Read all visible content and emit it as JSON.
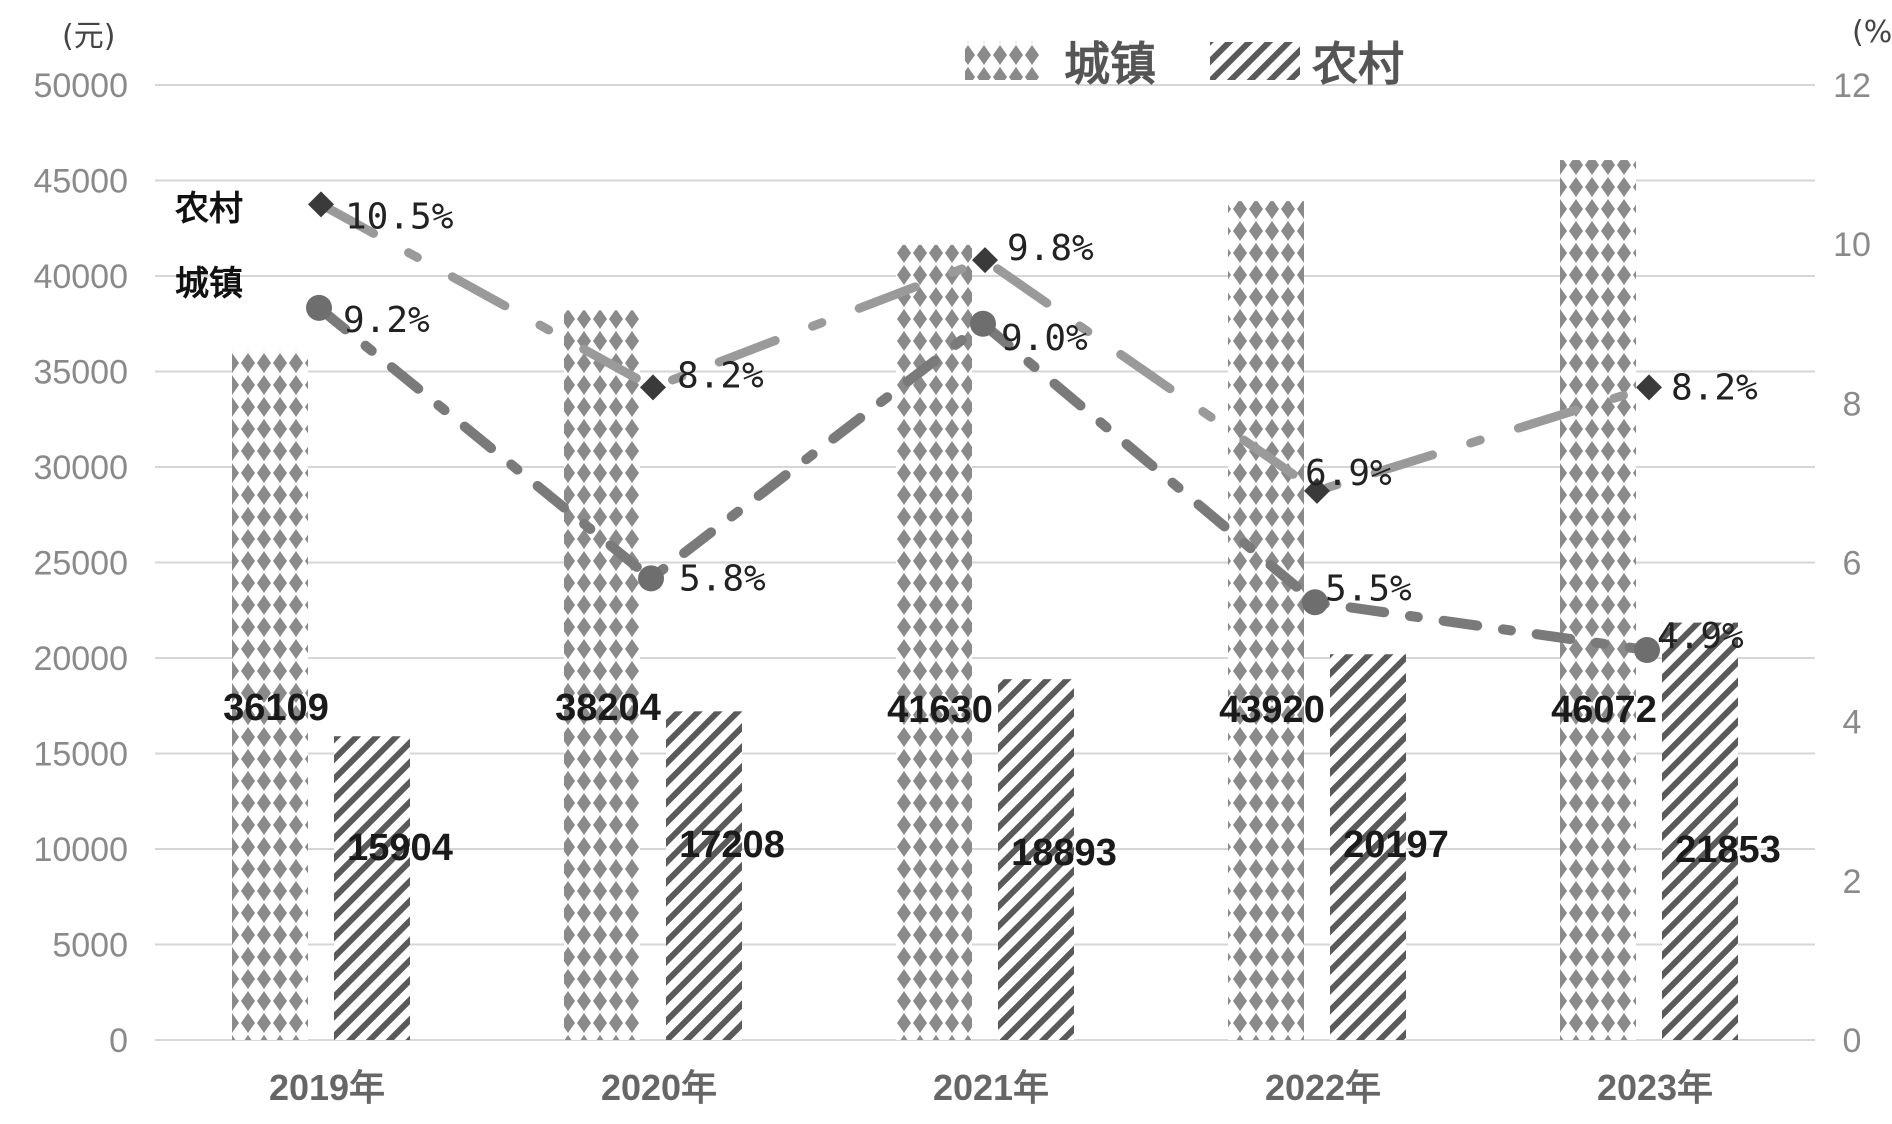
{
  "chart_data": {
    "type": "bar",
    "left_unit": "(元)",
    "right_unit": "(%)",
    "categories": [
      "2019年",
      "2020年",
      "2021年",
      "2022年",
      "2023年"
    ],
    "left_axis": {
      "ylim": [
        0,
        50000
      ],
      "ticks": [
        "0",
        "5000",
        "10000",
        "15000",
        "20000",
        "25000",
        "30000",
        "35000",
        "40000",
        "45000",
        "50000"
      ]
    },
    "right_axis": {
      "ylim": [
        0,
        12
      ],
      "ticks": [
        "0",
        "2",
        "4",
        "6",
        "8",
        "10",
        "12"
      ]
    },
    "bar_series": [
      {
        "name": "城镇",
        "values": [
          36109,
          38204,
          41630,
          43920,
          46072
        ],
        "labels": [
          "36109",
          "38204",
          "41630",
          "43920",
          "46072"
        ],
        "pattern": "diamond",
        "color": "#8a8a8a"
      },
      {
        "name": "农村",
        "values": [
          15904,
          17208,
          18893,
          20197,
          21853
        ],
        "labels": [
          "15904",
          "17208",
          "18893",
          "20197",
          "21853"
        ],
        "pattern": "stripe",
        "color": "#6a6a6a"
      }
    ],
    "line_series": [
      {
        "name": "农村",
        "values": [
          10.5,
          8.2,
          9.8,
          6.9,
          8.2
        ],
        "labels": [
          "10.5%",
          "8.2%",
          "9.8%",
          "6.9%",
          "8.2%"
        ],
        "marker": "diamond",
        "color": "#9a9a9a"
      },
      {
        "name": "城镇",
        "values": [
          9.2,
          5.8,
          9.0,
          5.5,
          4.9
        ],
        "labels": [
          "9.2%",
          "5.8%",
          "9.0%",
          "5.5%",
          "4.9%"
        ],
        "marker": "circle",
        "color": "#7a7a7a"
      }
    ],
    "legend": {
      "position": "top-center",
      "items": [
        "城镇",
        "农村"
      ]
    },
    "grid": true
  }
}
